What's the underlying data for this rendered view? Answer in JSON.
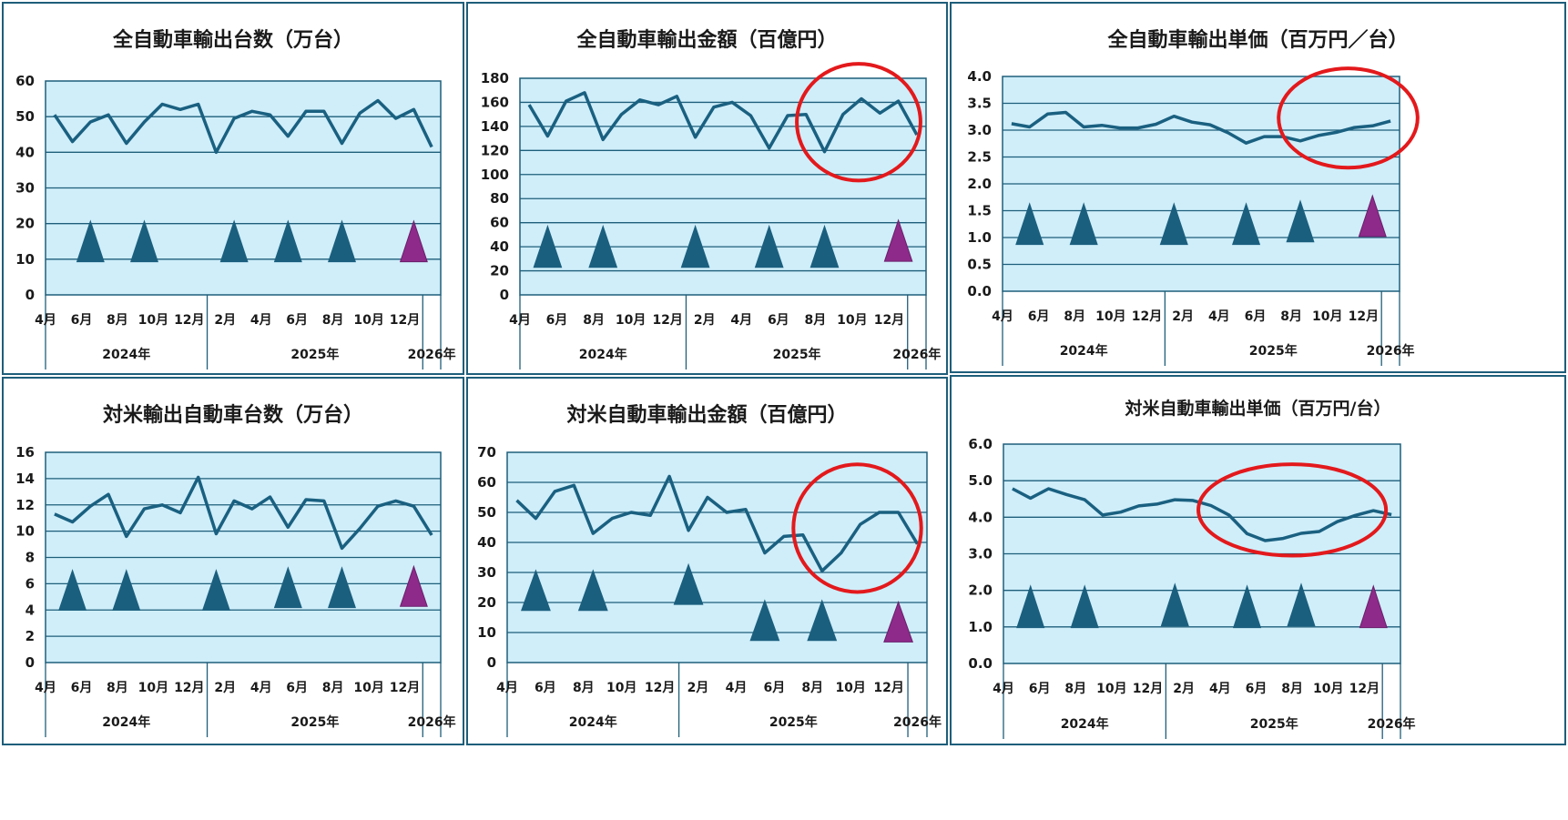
{
  "colors": {
    "plot_bg": "#cfeefa",
    "line": "#1a6080",
    "triangle": "#1b5f7e",
    "triangle_latest": "#8e2a8a",
    "highlight": "#e3191c",
    "grid": "#1e5e7a",
    "panel_border": "#1e5e7a"
  },
  "charts": [
    {
      "id": "total-units",
      "title": "全自動車輸出台数（万台）",
      "chart_data": {
        "type": "line",
        "title": "全自動車輸出台数（万台）",
        "ylim": [
          0,
          60
        ],
        "y_step": 10,
        "y_decimals": 0,
        "x_tick_labels": [
          "4月",
          "6月",
          "8月",
          "10月",
          "12月",
          "2月",
          "4月",
          "6月",
          "8月",
          "10月",
          "12月"
        ],
        "year_labels": [
          "2024年",
          "2025年",
          "2026年"
        ],
        "series": [
          {
            "values": [
              50.5,
              43,
              48.5,
              50.5,
              42.5,
              48.5,
              53.5,
              52,
              53.5,
              40,
              49.5,
              51.5,
              50.5,
              44.5,
              51.5,
              51.5,
              42.5,
              51,
              54.5,
              49.5,
              52,
              41.5
            ]
          }
        ],
        "markers": [
          {
            "month": 2,
            "value": 15
          },
          {
            "month": 5,
            "value": 15
          },
          {
            "month": 10,
            "value": 15
          },
          {
            "month": 13,
            "value": 15
          },
          {
            "month": 16,
            "value": 15
          },
          {
            "month": 20,
            "value": 15
          }
        ],
        "highlight": null
      }
    },
    {
      "id": "total-value",
      "title": "全自動車輸出金額（百億円）",
      "chart_data": {
        "type": "line",
        "title": "全自動車輸出金額（百億円）",
        "ylim": [
          0,
          180
        ],
        "y_step": 20,
        "y_decimals": 0,
        "x_tick_labels": [
          "4月",
          "6月",
          "8月",
          "10月",
          "12月",
          "2月",
          "4月",
          "6月",
          "8月",
          "10月",
          "12月"
        ],
        "year_labels": [
          "2024年",
          "2025年",
          "2026年"
        ],
        "series": [
          {
            "values": [
              158,
              132,
              161,
              168,
              129,
              150,
              162,
              158,
              165,
              131,
              156,
              160,
              149,
              122,
              149,
              150,
              119,
              150,
              163,
              151,
              161,
              133
            ]
          }
        ],
        "markers": [
          {
            "month": 1,
            "value": 40
          },
          {
            "month": 4,
            "value": 40
          },
          {
            "month": 9,
            "value": 40
          },
          {
            "month": 13,
            "value": 40
          },
          {
            "month": 16,
            "value": 40
          },
          {
            "month": 20,
            "value": 45
          }
        ],
        "highlight": {
          "from_month": 14.5,
          "to_month": 21.2,
          "y_from": 95,
          "y_to": 192
        }
      }
    },
    {
      "id": "total-unit-price",
      "title": "全自動車輸出単価（百万円／台）",
      "chart_data": {
        "type": "line",
        "title": "全自動車輸出単価（百万円／台）",
        "ylim": [
          0,
          4
        ],
        "y_step": 0.5,
        "y_decimals": 1,
        "x_tick_labels": [
          "4月",
          "6月",
          "8月",
          "10月",
          "12月",
          "2月",
          "4月",
          "6月",
          "8月",
          "10月",
          "12月"
        ],
        "year_labels": [
          "2024年",
          "2025年",
          "2026年"
        ],
        "series": [
          {
            "values": [
              3.12,
              3.06,
              3.3,
              3.33,
              3.06,
              3.09,
              3.04,
              3.04,
              3.11,
              3.26,
              3.15,
              3.1,
              2.95,
              2.76,
              2.88,
              2.88,
              2.8,
              2.9,
              2.96,
              3.05,
              3.08,
              3.17
            ]
          }
        ],
        "markers": [
          {
            "month": 1,
            "value": 1.25
          },
          {
            "month": 4,
            "value": 1.25
          },
          {
            "month": 9,
            "value": 1.25
          },
          {
            "month": 13,
            "value": 1.25
          },
          {
            "month": 16,
            "value": 1.3
          },
          {
            "month": 20,
            "value": 1.4
          }
        ],
        "highlight": {
          "from_month": 14.8,
          "to_month": 22.5,
          "y_from": 2.3,
          "y_to": 4.15
        }
      }
    },
    {
      "id": "us-units",
      "title": "対米輸出自動車台数（万台）",
      "chart_data": {
        "type": "line",
        "title": "対米輸出自動車台数（万台）",
        "ylim": [
          0,
          16
        ],
        "y_step": 2,
        "y_decimals": 0,
        "x_tick_labels": [
          "4月",
          "6月",
          "8月",
          "10月",
          "12月",
          "2月",
          "4月",
          "6月",
          "8月",
          "10月",
          "12月"
        ],
        "year_labels": [
          "2024年",
          "2025年",
          "2026年"
        ],
        "series": [
          {
            "values": [
              11.3,
              10.7,
              11.9,
              12.8,
              9.6,
              11.7,
              12,
              11.4,
              14.1,
              9.8,
              12.3,
              11.7,
              12.6,
              10.3,
              12.4,
              12.3,
              8.7,
              10.2,
              11.9,
              12.3,
              11.9,
              9.7
            ]
          }
        ],
        "markers": [
          {
            "month": 1,
            "value": 5.5
          },
          {
            "month": 4,
            "value": 5.5
          },
          {
            "month": 9,
            "value": 5.5
          },
          {
            "month": 13,
            "value": 5.7
          },
          {
            "month": 16,
            "value": 5.7
          },
          {
            "month": 20,
            "value": 5.8
          }
        ],
        "highlight": null
      }
    },
    {
      "id": "us-value",
      "title": "対米自動車輸出金額（百億円）",
      "chart_data": {
        "type": "line",
        "title": "対米自動車輸出金額（百億円）",
        "ylim": [
          0,
          70
        ],
        "y_step": 10,
        "y_decimals": 0,
        "x_tick_labels": [
          "4月",
          "6月",
          "8月",
          "10月",
          "12月",
          "2月",
          "4月",
          "6月",
          "8月",
          "10月",
          "12月"
        ],
        "year_labels": [
          "2024年",
          "2025年",
          "2026年"
        ],
        "series": [
          {
            "values": [
              54,
              48,
              57,
              59,
              43,
              48,
              50,
              49,
              62,
              44,
              55,
              50,
              51,
              36.5,
              42,
              42.5,
              30.5,
              36.5,
              46,
              50,
              50,
              39.5
            ]
          }
        ],
        "markers": [
          {
            "month": 1,
            "value": 24
          },
          {
            "month": 4,
            "value": 24
          },
          {
            "month": 9,
            "value": 26
          },
          {
            "month": 13,
            "value": 14
          },
          {
            "month": 16,
            "value": 14
          },
          {
            "month": 20,
            "value": 13.5
          }
        ],
        "highlight": {
          "from_month": 14.5,
          "to_month": 21.2,
          "y_from": 23.5,
          "y_to": 66
        }
      }
    },
    {
      "id": "us-unit-price",
      "title": "対米自動車輸出単価（百万円/台）",
      "chart_data": {
        "type": "line",
        "title": "対米自動車輸出単価（百万円/台）",
        "ylim": [
          0,
          6
        ],
        "y_step": 1,
        "y_decimals": 1,
        "x_tick_labels": [
          "4月",
          "6月",
          "8月",
          "10月",
          "12月",
          "2月",
          "4月",
          "6月",
          "8月",
          "10月",
          "12月"
        ],
        "year_labels": [
          "2024年",
          "2025年",
          "2026年"
        ],
        "series": [
          {
            "values": [
              4.78,
              4.52,
              4.78,
              4.62,
              4.48,
              4.06,
              4.14,
              4.31,
              4.36,
              4.48,
              4.46,
              4.32,
              4.06,
              3.55,
              3.36,
              3.42,
              3.56,
              3.61,
              3.88,
              4.05,
              4.18,
              4.07
            ]
          }
        ],
        "markers": [
          {
            "month": 1,
            "value": 1.55
          },
          {
            "month": 4,
            "value": 1.55
          },
          {
            "month": 9,
            "value": 1.6
          },
          {
            "month": 13,
            "value": 1.55
          },
          {
            "month": 16,
            "value": 1.6
          },
          {
            "month": 20,
            "value": 1.55
          }
        ],
        "highlight": {
          "from_month": 10.3,
          "to_month": 20.7,
          "y_from": 2.95,
          "y_to": 5.45
        }
      }
    }
  ]
}
